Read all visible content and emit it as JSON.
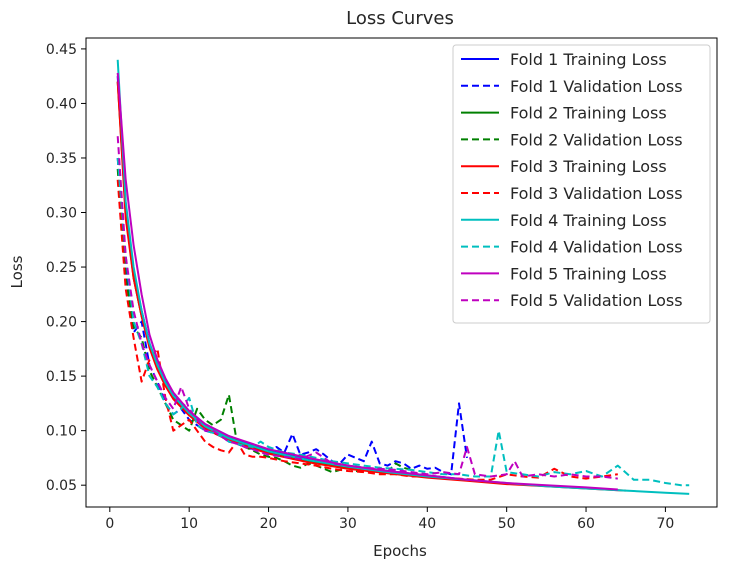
{
  "chart_data": {
    "type": "line",
    "title": "Loss Curves",
    "xlabel": "Epochs",
    "ylabel": "Loss",
    "xlim": [
      -3,
      76.5
    ],
    "ylim": [
      0.03,
      0.46
    ],
    "xticks": [
      0,
      10,
      20,
      30,
      40,
      50,
      60,
      70
    ],
    "yticks": [
      0.05,
      0.1,
      0.15,
      0.2,
      0.25,
      0.3,
      0.35,
      0.4,
      0.45
    ],
    "ytick_labels": [
      "0.05",
      "0.10",
      "0.15",
      "0.20",
      "0.25",
      "0.30",
      "0.35",
      "0.40",
      "0.45"
    ],
    "grid": false,
    "legend_position": "top-right",
    "series": [
      {
        "name": "Fold 1 Training Loss",
        "color": "#0000ff",
        "dash": "solid",
        "x": [
          1,
          2,
          3,
          4,
          5,
          6,
          7,
          8,
          10,
          12,
          15,
          18,
          20,
          25,
          30,
          35,
          40,
          45
        ],
        "y": [
          0.425,
          0.3,
          0.245,
          0.21,
          0.18,
          0.16,
          0.145,
          0.133,
          0.118,
          0.106,
          0.095,
          0.087,
          0.082,
          0.074,
          0.068,
          0.063,
          0.059,
          0.055
        ]
      },
      {
        "name": "Fold 1 Validation Loss",
        "color": "#0000ff",
        "dash": "dashed",
        "x": [
          1,
          2,
          3,
          4,
          5,
          6,
          7,
          8,
          9,
          10,
          11,
          12,
          13,
          14,
          15,
          16,
          17,
          18,
          19,
          20,
          21,
          22,
          23,
          24,
          25,
          26,
          27,
          28,
          29,
          30,
          31,
          32,
          33,
          34,
          35,
          36,
          37,
          38,
          39,
          40,
          41,
          42,
          43,
          44,
          45
        ],
        "y": [
          0.35,
          0.25,
          0.19,
          0.2,
          0.16,
          0.145,
          0.125,
          0.115,
          0.12,
          0.11,
          0.105,
          0.1,
          0.098,
          0.095,
          0.09,
          0.088,
          0.085,
          0.083,
          0.082,
          0.08,
          0.085,
          0.08,
          0.097,
          0.078,
          0.08,
          0.083,
          0.078,
          0.072,
          0.07,
          0.078,
          0.075,
          0.072,
          0.09,
          0.07,
          0.068,
          0.072,
          0.07,
          0.065,
          0.068,
          0.065,
          0.066,
          0.062,
          0.06,
          0.125,
          0.075
        ]
      },
      {
        "name": "Fold 2 Training Loss",
        "color": "#008000",
        "dash": "solid",
        "x": [
          1,
          2,
          3,
          4,
          5,
          6,
          7,
          8,
          10,
          12,
          15,
          18,
          20,
          25,
          30,
          35,
          38
        ],
        "y": [
          0.42,
          0.3,
          0.24,
          0.205,
          0.178,
          0.158,
          0.143,
          0.131,
          0.116,
          0.104,
          0.093,
          0.085,
          0.08,
          0.072,
          0.066,
          0.062,
          0.06
        ]
      },
      {
        "name": "Fold 2 Validation Loss",
        "color": "#008000",
        "dash": "dashed",
        "x": [
          1,
          2,
          3,
          4,
          5,
          6,
          7,
          8,
          9,
          10,
          11,
          12,
          13,
          14,
          15,
          16,
          17,
          18,
          19,
          20,
          21,
          22,
          23,
          24,
          25,
          26,
          27,
          28,
          29,
          30,
          31,
          32,
          33,
          34,
          35,
          36,
          37,
          38
        ],
        "y": [
          0.34,
          0.24,
          0.195,
          0.185,
          0.155,
          0.14,
          0.125,
          0.11,
          0.105,
          0.1,
          0.12,
          0.11,
          0.105,
          0.11,
          0.133,
          0.09,
          0.085,
          0.082,
          0.078,
          0.076,
          0.075,
          0.072,
          0.068,
          0.066,
          0.07,
          0.068,
          0.065,
          0.062,
          0.064,
          0.066,
          0.063,
          0.062,
          0.064,
          0.066,
          0.062,
          0.07,
          0.066,
          0.064
        ]
      },
      {
        "name": "Fold 3 Training Loss",
        "color": "#ff0000",
        "dash": "solid",
        "x": [
          1,
          2,
          3,
          4,
          5,
          6,
          7,
          8,
          10,
          12,
          15,
          20,
          25,
          30,
          35,
          40,
          45,
          50,
          55,
          60,
          65
        ],
        "y": [
          0.42,
          0.295,
          0.24,
          0.205,
          0.176,
          0.156,
          0.141,
          0.129,
          0.114,
          0.102,
          0.091,
          0.079,
          0.071,
          0.065,
          0.061,
          0.057,
          0.054,
          0.051,
          0.049,
          0.047,
          0.045
        ]
      },
      {
        "name": "Fold 3 Validation Loss",
        "color": "#ff0000",
        "dash": "dashed",
        "x": [
          1,
          2,
          3,
          4,
          5,
          6,
          7,
          8,
          9,
          10,
          11,
          12,
          13,
          14,
          15,
          16,
          17,
          18,
          19,
          20,
          22,
          24,
          26,
          28,
          30,
          32,
          34,
          36,
          38,
          40,
          42,
          44,
          46,
          48,
          50,
          52,
          54,
          56,
          58,
          60,
          62,
          64
        ],
        "y": [
          0.33,
          0.23,
          0.185,
          0.145,
          0.165,
          0.175,
          0.13,
          0.1,
          0.105,
          0.11,
          0.1,
          0.09,
          0.085,
          0.082,
          0.08,
          0.09,
          0.078,
          0.076,
          0.076,
          0.075,
          0.072,
          0.07,
          0.068,
          0.065,
          0.063,
          0.062,
          0.06,
          0.06,
          0.058,
          0.058,
          0.057,
          0.056,
          0.055,
          0.055,
          0.06,
          0.058,
          0.057,
          0.065,
          0.058,
          0.056,
          0.058,
          0.06
        ]
      },
      {
        "name": "Fold 4 Training Loss",
        "color": "#00bfbf",
        "dash": "solid",
        "x": [
          1,
          2,
          3,
          4,
          5,
          6,
          7,
          8,
          10,
          12,
          15,
          20,
          25,
          30,
          35,
          40,
          45,
          50,
          55,
          60,
          65,
          70,
          73
        ],
        "y": [
          0.44,
          0.31,
          0.25,
          0.21,
          0.18,
          0.16,
          0.144,
          0.132,
          0.116,
          0.104,
          0.093,
          0.081,
          0.073,
          0.067,
          0.062,
          0.058,
          0.055,
          0.052,
          0.049,
          0.047,
          0.045,
          0.043,
          0.042
        ]
      },
      {
        "name": "Fold 4 Validation Loss",
        "color": "#00bfbf",
        "dash": "dashed",
        "x": [
          1,
          2,
          3,
          4,
          5,
          6,
          7,
          8,
          9,
          10,
          11,
          12,
          13,
          14,
          15,
          16,
          17,
          18,
          19,
          20,
          22,
          24,
          26,
          28,
          30,
          32,
          34,
          36,
          38,
          40,
          42,
          44,
          46,
          48,
          49,
          50,
          52,
          54,
          56,
          58,
          60,
          62,
          64,
          66,
          68,
          70,
          72,
          73
        ],
        "y": [
          0.35,
          0.26,
          0.2,
          0.18,
          0.15,
          0.14,
          0.125,
          0.115,
          0.12,
          0.13,
          0.105,
          0.1,
          0.098,
          0.095,
          0.09,
          0.088,
          0.086,
          0.085,
          0.09,
          0.085,
          0.08,
          0.078,
          0.075,
          0.072,
          0.07,
          0.068,
          0.066,
          0.065,
          0.064,
          0.062,
          0.06,
          0.06,
          0.058,
          0.058,
          0.1,
          0.062,
          0.06,
          0.058,
          0.062,
          0.06,
          0.063,
          0.058,
          0.068,
          0.055,
          0.055,
          0.052,
          0.05,
          0.05
        ]
      },
      {
        "name": "Fold 5 Training Loss",
        "color": "#bf00bf",
        "dash": "solid",
        "x": [
          1,
          2,
          3,
          4,
          5,
          6,
          7,
          8,
          10,
          12,
          15,
          20,
          25,
          30,
          35,
          40,
          45,
          50,
          55,
          60,
          64
        ],
        "y": [
          0.428,
          0.33,
          0.27,
          0.225,
          0.188,
          0.165,
          0.148,
          0.135,
          0.118,
          0.106,
          0.095,
          0.083,
          0.075,
          0.068,
          0.063,
          0.059,
          0.055,
          0.052,
          0.05,
          0.048,
          0.046
        ]
      },
      {
        "name": "Fold 5 Validation Loss",
        "color": "#bf00bf",
        "dash": "dashed",
        "x": [
          1,
          2,
          3,
          4,
          5,
          6,
          7,
          8,
          9,
          10,
          11,
          12,
          13,
          14,
          15,
          16,
          17,
          18,
          19,
          20,
          22,
          24,
          26,
          28,
          30,
          32,
          34,
          36,
          38,
          40,
          42,
          44,
          45,
          46,
          48,
          50,
          51,
          52,
          54,
          56,
          58,
          60,
          62,
          64
        ],
        "y": [
          0.37,
          0.26,
          0.21,
          0.18,
          0.16,
          0.145,
          0.13,
          0.12,
          0.14,
          0.12,
          0.11,
          0.1,
          0.1,
          0.095,
          0.09,
          0.088,
          0.085,
          0.083,
          0.08,
          0.078,
          0.076,
          0.074,
          0.08,
          0.07,
          0.068,
          0.066,
          0.065,
          0.064,
          0.062,
          0.06,
          0.062,
          0.06,
          0.085,
          0.06,
          0.058,
          0.06,
          0.072,
          0.058,
          0.06,
          0.058,
          0.06,
          0.058,
          0.058,
          0.056
        ]
      }
    ]
  }
}
